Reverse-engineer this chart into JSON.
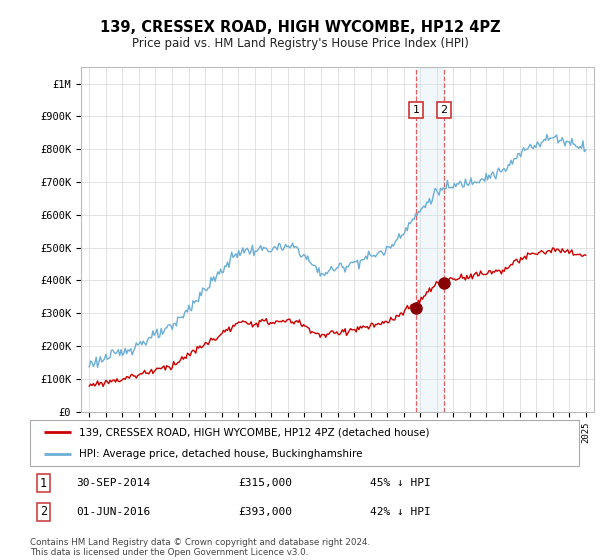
{
  "title": "139, CRESSEX ROAD, HIGH WYCOMBE, HP12 4PZ",
  "subtitle": "Price paid vs. HM Land Registry's House Price Index (HPI)",
  "legend_line1": "139, CRESSEX ROAD, HIGH WYCOMBE, HP12 4PZ (detached house)",
  "legend_line2": "HPI: Average price, detached house, Buckinghamshire",
  "sale1_date": "30-SEP-2014",
  "sale1_price": "£315,000",
  "sale1_pct": "45% ↓ HPI",
  "sale1_year": 2014.75,
  "sale1_value": 315000,
  "sale2_date": "01-JUN-2016",
  "sale2_price": "£393,000",
  "sale2_pct": "42% ↓ HPI",
  "sale2_year": 2016.42,
  "sale2_value": 393000,
  "hpi_color": "#6baed6",
  "price_color": "#cc0000",
  "marker_color": "#880000",
  "vline_color": "#e06060",
  "shade_color": "#cce0f5",
  "footer": "Contains HM Land Registry data © Crown copyright and database right 2024.\nThis data is licensed under the Open Government Licence v3.0.",
  "ylim": [
    0,
    1050000
  ],
  "xlim_start": 1994.5,
  "xlim_end": 2025.5
}
